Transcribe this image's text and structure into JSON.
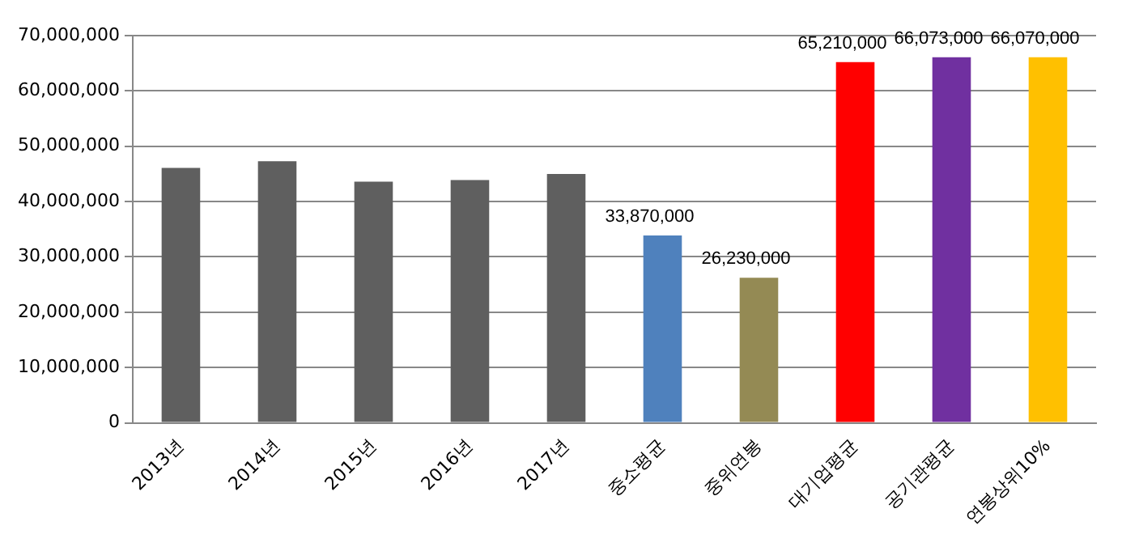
{
  "chart_data": {
    "type": "bar",
    "categories": [
      "2013년",
      "2014년",
      "2015년",
      "2016년",
      "2017년",
      "중소평균",
      "중위연봉",
      "대기업평균",
      "공기관평균",
      "연봉상위10%"
    ],
    "values": [
      46100000,
      47300000,
      43600000,
      43900000,
      45000000,
      33870000,
      26230000,
      65210000,
      66073000,
      66070000
    ],
    "value_labels": [
      null,
      null,
      null,
      null,
      null,
      "33,870,000",
      "26,230,000",
      "65,210,000",
      "66,073,000",
      "66,070,000"
    ],
    "colors": [
      "#5f5f5f",
      "#5f5f5f",
      "#5f5f5f",
      "#5f5f5f",
      "#5f5f5f",
      "#4f81bd",
      "#948a54",
      "#ff0000",
      "#7030a0",
      "#ffc000"
    ],
    "ylim": [
      0,
      70000000
    ],
    "yticks": [
      {
        "value": 0,
        "label": "0"
      },
      {
        "value": 10000000,
        "label": "10,000,000"
      },
      {
        "value": 20000000,
        "label": "20,000,000"
      },
      {
        "value": 30000000,
        "label": "30,000,000"
      },
      {
        "value": 40000000,
        "label": "40,000,000"
      },
      {
        "value": 50000000,
        "label": "50,000,000"
      },
      {
        "value": 60000000,
        "label": "60,000,000"
      },
      {
        "value": 70000000,
        "label": "70,000,000"
      }
    ],
    "grid": "y",
    "legend": false
  }
}
